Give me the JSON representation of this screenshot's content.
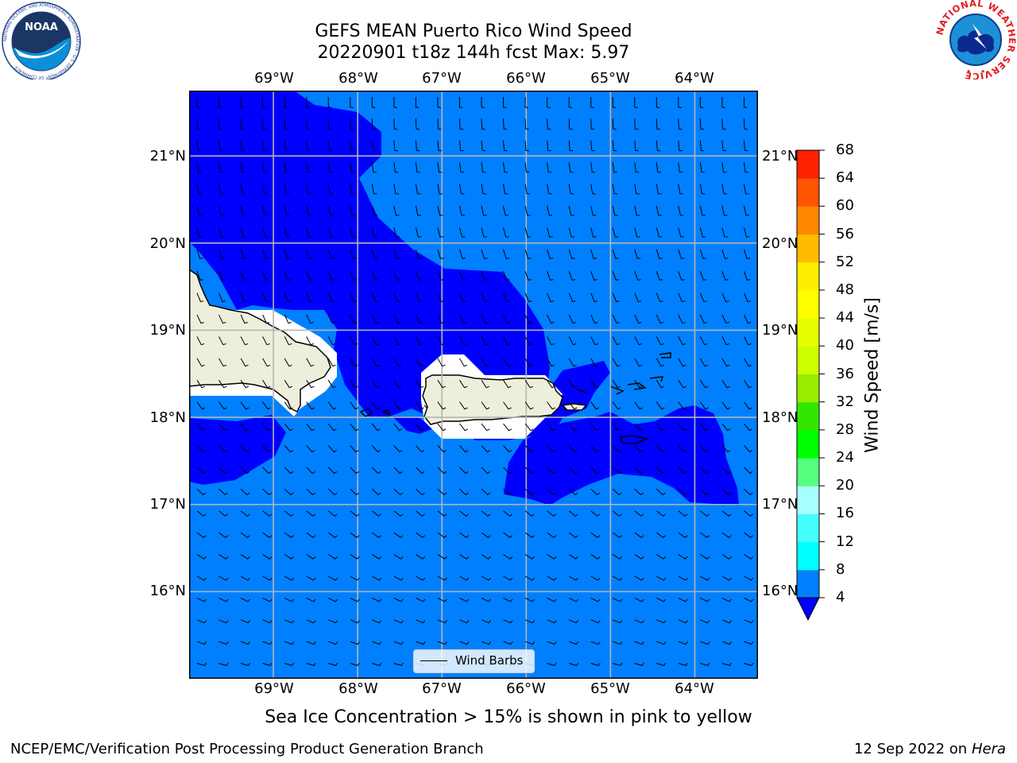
{
  "title": {
    "line1": "GEFS MEAN Puerto Rico Wind Speed",
    "line2": "20220901 t18z 144h fcst   Max: 5.97"
  },
  "map": {
    "lon_labels": [
      "69°W",
      "68°W",
      "67°W",
      "66°W",
      "65°W",
      "64°W"
    ],
    "lat_labels": [
      "21°N",
      "20°N",
      "19°N",
      "18°N",
      "17°N",
      "16°N"
    ],
    "lon_range": [
      -70.0,
      -63.25
    ],
    "lat_range": [
      15.0,
      21.75
    ],
    "wind_field_colors": {
      "light": "#0080ff",
      "dark": "#0000ff",
      "land": "#eeeedd",
      "no_data": "#ffffff"
    }
  },
  "colorbar": {
    "title": "Wind Speed [m/s]",
    "ticks": [
      "4",
      "8",
      "12",
      "16",
      "20",
      "24",
      "28",
      "32",
      "36",
      "40",
      "44",
      "48",
      "52",
      "56",
      "60",
      "64",
      "68"
    ],
    "colors": [
      "#0080ff",
      "#00ffff",
      "#45ffff",
      "#a8ffff",
      "#55ff80",
      "#00ff00",
      "#33e600",
      "#99ee00",
      "#ccff00",
      "#e6ff00",
      "#ffff00",
      "#ffee00",
      "#ffbb00",
      "#ff8800",
      "#ff5500",
      "#ff2200"
    ],
    "under_color": "#0000ff"
  },
  "legend": {
    "label": "Wind Barbs"
  },
  "footer": {
    "note": "Sea Ice Concentration > 15% is shown in pink to yellow",
    "credit": "NCEP/EMC/Verification Post Processing Product Generation Branch",
    "date": "12 Sep 2022 on",
    "host": "Hera"
  },
  "logos": {
    "noaa": {
      "text": "NOAA",
      "ring_text": "NATIONAL OCEANIC AND ATMOSPHERIC ADMINISTRATION · U.S. DEPARTMENT OF COMMERCE"
    },
    "nws": {
      "ring_text": "NATIONAL WEATHER SERVICE"
    }
  }
}
